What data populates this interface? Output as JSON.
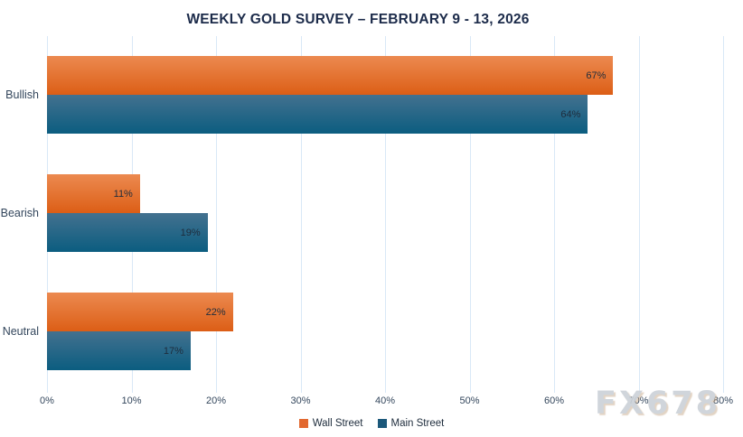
{
  "title": "WEEKLY GOLD SURVEY – FEBRUARY 9 - 13, 2026",
  "watermark": "FX678",
  "chart_data": {
    "type": "bar",
    "orientation": "horizontal",
    "title": "WEEKLY GOLD SURVEY – FEBRUARY 9 - 13, 2026",
    "categories": [
      "Bullish",
      "Bearish",
      "Neutral"
    ],
    "series": [
      {
        "name": "Wall Street",
        "values": [
          67,
          11,
          22
        ],
        "color_top": "#EC8A50",
        "color_bottom": "#DC5E16",
        "legend_color": "#E2682F"
      },
      {
        "name": "Main Street",
        "values": [
          64,
          19,
          17
        ],
        "color_top": "#43718F",
        "color_bottom": "#0B5D80",
        "legend_color": "#1B587A"
      }
    ],
    "value_suffix": "%",
    "data_labels": true,
    "xlabel": "",
    "ylabel": "",
    "xlim": [
      0,
      80
    ],
    "x_ticks": [
      "0%",
      "10%",
      "20%",
      "30%",
      "40%",
      "50%",
      "60%",
      "70%",
      "80%"
    ],
    "grid": true,
    "legend_position": "bottom"
  },
  "colors": {
    "background": "#FFFFFF",
    "title": "#1C2B4A",
    "axis_text": "#33465C",
    "grid": "#D9E8F7",
    "bar_label": "#1E2C3C",
    "watermark": "#CDD2D8"
  }
}
